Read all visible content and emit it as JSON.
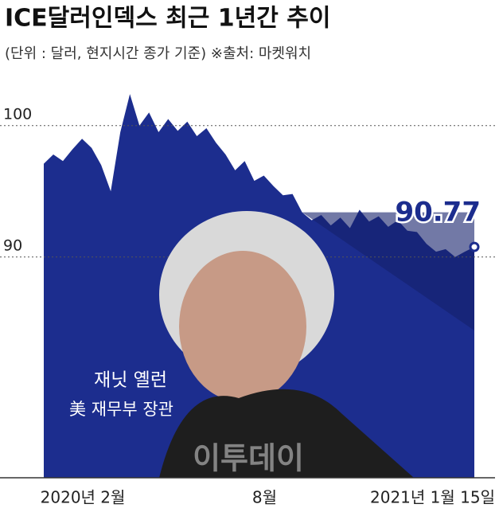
{
  "chart_data": {
    "type": "area",
    "title": "ICE달러인덱스 최근 1년간 추이",
    "subtitle": "(단위 : 달러, 현지시간 종가 기준) ※출처: 마켓워치",
    "categories": [
      null,
      null,
      "2020년 2월",
      null,
      null,
      null,
      null,
      null,
      null,
      null,
      null,
      null,
      null,
      null,
      null,
      null,
      null,
      null,
      null,
      null,
      null,
      "8월",
      null,
      null,
      null,
      null,
      null,
      null,
      null,
      null,
      null,
      null,
      null,
      null,
      null,
      null,
      null,
      null,
      null,
      null,
      null,
      null,
      null,
      null,
      null,
      "2021년 1월 15일"
    ],
    "values": [
      97.1,
      97.8,
      97.3,
      98.2,
      99.0,
      98.3,
      97.0,
      95.0,
      99.5,
      102.4,
      100.0,
      101.0,
      99.5,
      100.5,
      99.6,
      100.3,
      99.2,
      99.8,
      98.7,
      97.8,
      96.6,
      97.3,
      95.8,
      96.2,
      95.4,
      94.7,
      94.8,
      93.4,
      92.8,
      93.2,
      92.4,
      93.0,
      92.2,
      93.6,
      92.7,
      93.1,
      92.3,
      92.8,
      92.0,
      91.9,
      91.0,
      90.4,
      90.6,
      90.0,
      90.4,
      90.77
    ],
    "color": "#1c2d8e",
    "ylim": [
      73.2,
      103.5
    ],
    "yticks": [
      90,
      100
    ],
    "grid": true,
    "annotations": [
      "재닛 옐런",
      "美 재무부 장관",
      "이투데이"
    ]
  }
}
